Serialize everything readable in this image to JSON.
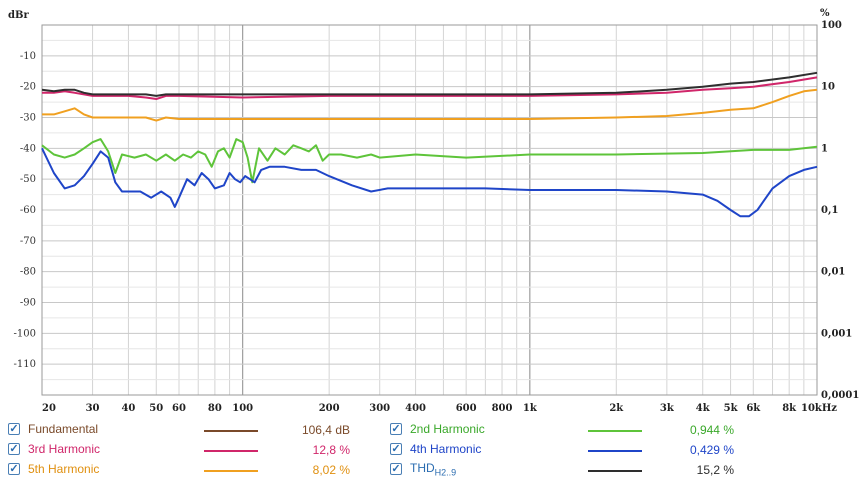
{
  "chart_data": {
    "type": "line",
    "ylabel_left": "dBr",
    "ylabel_right": "%",
    "x_unit": "kHz",
    "x_scale": "log",
    "xlim": [
      20,
      10000
    ],
    "ylim_left": [
      -120,
      0
    ],
    "ylim_right_log": [
      0.0001,
      100
    ],
    "x_ticks": [
      {
        "v": 20,
        "t": "20"
      },
      {
        "v": 30,
        "t": "30"
      },
      {
        "v": 40,
        "t": "40"
      },
      {
        "v": 50,
        "t": "50"
      },
      {
        "v": 60,
        "t": "60"
      },
      {
        "v": 80,
        "t": "80"
      },
      {
        "v": 100,
        "t": "100"
      },
      {
        "v": 200,
        "t": "200"
      },
      {
        "v": 300,
        "t": "300"
      },
      {
        "v": 400,
        "t": "400"
      },
      {
        "v": 600,
        "t": "600"
      },
      {
        "v": 800,
        "t": "800"
      },
      {
        "v": 1000,
        "t": "1k"
      },
      {
        "v": 2000,
        "t": "2k"
      },
      {
        "v": 3000,
        "t": "3k"
      },
      {
        "v": 4000,
        "t": "4k"
      },
      {
        "v": 5000,
        "t": "5k"
      },
      {
        "v": 6000,
        "t": "6k"
      },
      {
        "v": 8000,
        "t": "8k"
      },
      {
        "v": 10000,
        "t": "10kHz"
      }
    ],
    "y_ticks_left": [
      "-10",
      "-20",
      "-30",
      "-40",
      "-50",
      "-60",
      "-70",
      "-80",
      "-90",
      "-100",
      "-110"
    ],
    "y_ticks_right": [
      {
        "v": 100,
        "t": "100"
      },
      {
        "v": 10,
        "t": "10"
      },
      {
        "v": 1,
        "t": "1"
      },
      {
        "v": 0.1,
        "t": "0,1"
      },
      {
        "v": 0.01,
        "t": "0,01"
      },
      {
        "v": 0.001,
        "t": "0,001"
      },
      {
        "v": 0.0001,
        "t": "0,0001"
      }
    ],
    "grid": true,
    "series": [
      {
        "name": "Fundamental",
        "value": "106,4 dB",
        "color": "#7a4a2a",
        "points": []
      },
      {
        "name": "2nd Harmonic",
        "value": "0,944 %",
        "color": "#5ec43a",
        "points": [
          [
            20,
            -39
          ],
          [
            22,
            -42
          ],
          [
            24,
            -43
          ],
          [
            26,
            -42
          ],
          [
            28,
            -40
          ],
          [
            30,
            -38
          ],
          [
            32,
            -37
          ],
          [
            34,
            -41
          ],
          [
            36,
            -48
          ],
          [
            38,
            -42
          ],
          [
            42,
            -43
          ],
          [
            46,
            -42
          ],
          [
            50,
            -44
          ],
          [
            54,
            -42
          ],
          [
            58,
            -44
          ],
          [
            62,
            -42
          ],
          [
            66,
            -43
          ],
          [
            70,
            -41
          ],
          [
            74,
            -42
          ],
          [
            78,
            -46
          ],
          [
            82,
            -41
          ],
          [
            86,
            -40
          ],
          [
            90,
            -43
          ],
          [
            95,
            -37
          ],
          [
            100,
            -38
          ],
          [
            104,
            -43
          ],
          [
            108,
            -51
          ],
          [
            114,
            -40
          ],
          [
            122,
            -44
          ],
          [
            130,
            -40
          ],
          [
            140,
            -42
          ],
          [
            150,
            -39
          ],
          [
            160,
            -40
          ],
          [
            170,
            -41
          ],
          [
            180,
            -39
          ],
          [
            190,
            -44
          ],
          [
            200,
            -42
          ],
          [
            220,
            -42
          ],
          [
            250,
            -43
          ],
          [
            280,
            -42
          ],
          [
            300,
            -43
          ],
          [
            400,
            -42
          ],
          [
            600,
            -43
          ],
          [
            1000,
            -42
          ],
          [
            2000,
            -42
          ],
          [
            4000,
            -41.5
          ],
          [
            6000,
            -40.5
          ],
          [
            8000,
            -40.5
          ],
          [
            10000,
            -39.5
          ]
        ]
      },
      {
        "name": "3rd Harmonic",
        "value": "12,8 %",
        "color": "#d0266a",
        "points": [
          [
            20,
            -22
          ],
          [
            22,
            -22
          ],
          [
            24,
            -21.5
          ],
          [
            26,
            -22
          ],
          [
            30,
            -23
          ],
          [
            40,
            -23
          ],
          [
            46,
            -23.5
          ],
          [
            50,
            -24
          ],
          [
            54,
            -23
          ],
          [
            60,
            -23
          ],
          [
            100,
            -23.5
          ],
          [
            200,
            -23
          ],
          [
            400,
            -23
          ],
          [
            1000,
            -23
          ],
          [
            2000,
            -22.5
          ],
          [
            3000,
            -22
          ],
          [
            4000,
            -21
          ],
          [
            5000,
            -20.5
          ],
          [
            6000,
            -20
          ],
          [
            8000,
            -18.5
          ],
          [
            10000,
            -17
          ]
        ]
      },
      {
        "name": "4th Harmonic",
        "value": "0,429 %",
        "color": "#1f45c8",
        "points": [
          [
            20,
            -40
          ],
          [
            22,
            -48
          ],
          [
            24,
            -53
          ],
          [
            26,
            -52
          ],
          [
            28,
            -49
          ],
          [
            30,
            -45
          ],
          [
            32,
            -41
          ],
          [
            34,
            -43
          ],
          [
            36,
            -51
          ],
          [
            38,
            -54
          ],
          [
            44,
            -54
          ],
          [
            48,
            -56
          ],
          [
            52,
            -54
          ],
          [
            56,
            -56
          ],
          [
            58,
            -59
          ],
          [
            60,
            -56
          ],
          [
            64,
            -50
          ],
          [
            68,
            -52
          ],
          [
            72,
            -48
          ],
          [
            76,
            -50
          ],
          [
            80,
            -53
          ],
          [
            86,
            -52
          ],
          [
            90,
            -48
          ],
          [
            94,
            -50
          ],
          [
            98,
            -51
          ],
          [
            102,
            -49
          ],
          [
            106,
            -50
          ],
          [
            110,
            -51
          ],
          [
            116,
            -47
          ],
          [
            124,
            -46
          ],
          [
            140,
            -46
          ],
          [
            160,
            -47
          ],
          [
            180,
            -47
          ],
          [
            200,
            -49
          ],
          [
            240,
            -52
          ],
          [
            280,
            -54
          ],
          [
            320,
            -53
          ],
          [
            400,
            -53
          ],
          [
            500,
            -53
          ],
          [
            700,
            -53
          ],
          [
            1000,
            -53.5
          ],
          [
            2000,
            -53.5
          ],
          [
            3000,
            -54
          ],
          [
            4000,
            -55
          ],
          [
            4500,
            -57
          ],
          [
            5000,
            -60
          ],
          [
            5400,
            -62
          ],
          [
            5800,
            -62
          ],
          [
            6200,
            -60
          ],
          [
            7000,
            -53
          ],
          [
            8000,
            -49
          ],
          [
            9000,
            -47
          ],
          [
            10000,
            -46
          ]
        ]
      },
      {
        "name": "5th Harmonic",
        "value": "8,02 %",
        "color": "#f0a020",
        "points": [
          [
            20,
            -29
          ],
          [
            22,
            -29
          ],
          [
            24,
            -28
          ],
          [
            26,
            -27
          ],
          [
            28,
            -29
          ],
          [
            30,
            -30
          ],
          [
            40,
            -30
          ],
          [
            46,
            -30
          ],
          [
            50,
            -31
          ],
          [
            54,
            -30
          ],
          [
            60,
            -30.5
          ],
          [
            100,
            -30.5
          ],
          [
            200,
            -30.5
          ],
          [
            400,
            -30.5
          ],
          [
            1000,
            -30.5
          ],
          [
            2000,
            -30
          ],
          [
            3000,
            -29.5
          ],
          [
            4000,
            -28.5
          ],
          [
            5000,
            -27.5
          ],
          [
            6000,
            -27
          ],
          [
            7000,
            -25
          ],
          [
            8000,
            -23
          ],
          [
            9000,
            -21.5
          ],
          [
            10000,
            -21
          ]
        ]
      },
      {
        "name": "THD_H2..9",
        "value": "15,2 %",
        "color": "#2e2e2e",
        "points": [
          [
            20,
            -21
          ],
          [
            22,
            -21.5
          ],
          [
            24,
            -21
          ],
          [
            26,
            -21
          ],
          [
            28,
            -22
          ],
          [
            30,
            -22.5
          ],
          [
            40,
            -22.5
          ],
          [
            46,
            -22.5
          ],
          [
            50,
            -23
          ],
          [
            54,
            -22.5
          ],
          [
            60,
            -22.5
          ],
          [
            100,
            -22.5
          ],
          [
            200,
            -22.5
          ],
          [
            400,
            -22.5
          ],
          [
            1000,
            -22.5
          ],
          [
            2000,
            -22
          ],
          [
            3000,
            -21
          ],
          [
            4000,
            -20
          ],
          [
            5000,
            -19
          ],
          [
            6000,
            -18.5
          ],
          [
            8000,
            -17
          ],
          [
            10000,
            -15.5
          ]
        ]
      }
    ]
  },
  "legend": {
    "fundamental_label": "Fundamental",
    "fundamental_value": "106,4 dB",
    "h3_label": "3rd Harmonic",
    "h3_value": "12,8 %",
    "h5_label": "5th Harmonic",
    "h5_value": "8,02 %",
    "h2_label": "2nd Harmonic",
    "h2_value": "0,944 %",
    "h4_label": "4th Harmonic",
    "h4_value": "0,429 %",
    "thd_label": "THD",
    "thd_sub": "H2..9",
    "thd_value": "15,2 %"
  },
  "colors": {
    "fundamental": "#7a4a2a",
    "h2": "#5ec43a",
    "h3": "#d0266a",
    "h4": "#1f45c8",
    "h5": "#f0a020",
    "thd": "#2e2e2e"
  }
}
